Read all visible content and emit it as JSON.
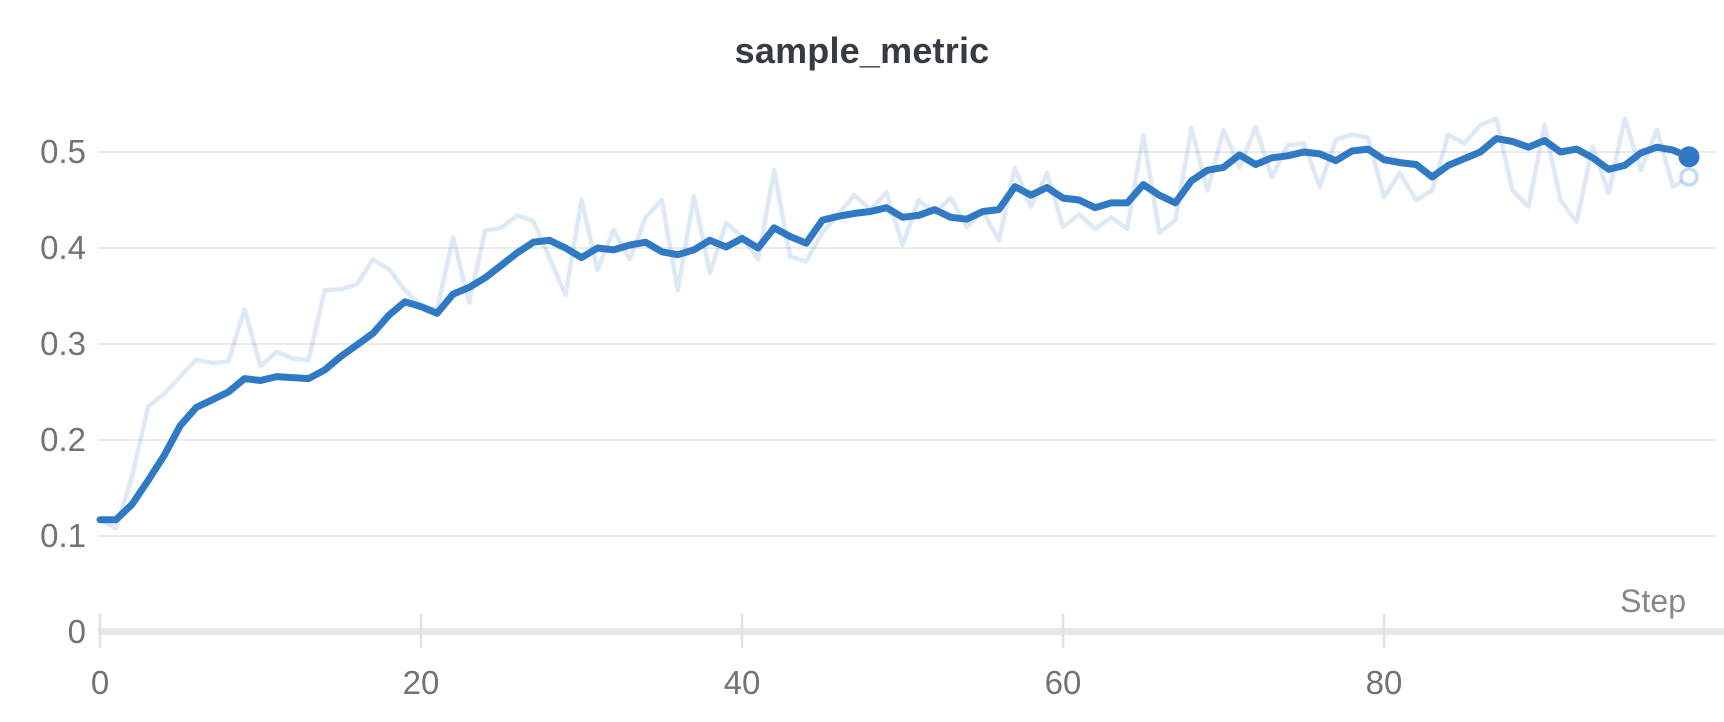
{
  "title": "sample_metric",
  "colors": {
    "title": "#363c44",
    "tick_label": "#6e737b",
    "x_axis_label": "#83878e",
    "gridline": "#ebebed",
    "axis_bar": "#e8e8ea",
    "axis_tick": "#e2e2e5",
    "line_primary": "#3079c4",
    "line_raw": "rgba(48,121,196,0.16)",
    "raw_endpoint_ring": "rgba(48,121,196,0.28)"
  },
  "chart_data": {
    "type": "line",
    "title": "sample_metric",
    "xlabel": "Step",
    "ylabel": "",
    "x_start": 0,
    "x_step": 1,
    "n_points": 100,
    "xlim": [
      0,
      101.2
    ],
    "ylim": [
      0,
      0.55
    ],
    "x_tick_values": [
      0,
      20,
      40,
      60,
      80
    ],
    "x_tick_labels": [
      "0",
      "20",
      "40",
      "60",
      "80"
    ],
    "y_tick_values": [
      0,
      0.1,
      0.2,
      0.3,
      0.4,
      0.5
    ],
    "y_tick_labels": [
      "0",
      "0.1",
      "0.2",
      "0.3",
      "0.4",
      "0.5"
    ],
    "grid": "horizontal",
    "legend": "none",
    "series": [
      {
        "name": "sample_metric (raw)",
        "style": "faint",
        "endpoint": "ring",
        "values": [
          0.117,
          0.108,
          0.162,
          0.235,
          0.248,
          0.266,
          0.284,
          0.28,
          0.282,
          0.336,
          0.277,
          0.292,
          0.285,
          0.283,
          0.356,
          0.357,
          0.362,
          0.388,
          0.378,
          0.356,
          0.34,
          0.336,
          0.411,
          0.343,
          0.418,
          0.421,
          0.434,
          0.428,
          0.39,
          0.351,
          0.45,
          0.377,
          0.419,
          0.388,
          0.432,
          0.45,
          0.356,
          0.454,
          0.374,
          0.426,
          0.412,
          0.388,
          0.481,
          0.391,
          0.386,
          0.416,
          0.435,
          0.455,
          0.44,
          0.458,
          0.403,
          0.45,
          0.437,
          0.452,
          0.422,
          0.438,
          0.408,
          0.483,
          0.443,
          0.478,
          0.422,
          0.435,
          0.42,
          0.432,
          0.42,
          0.518,
          0.416,
          0.429,
          0.525,
          0.46,
          0.523,
          0.484,
          0.526,
          0.474,
          0.507,
          0.509,
          0.464,
          0.513,
          0.518,
          0.515,
          0.453,
          0.478,
          0.45,
          0.46,
          0.518,
          0.509,
          0.528,
          0.535,
          0.46,
          0.443,
          0.528,
          0.45,
          0.427,
          0.506,
          0.457,
          0.535,
          0.481,
          0.523,
          0.464,
          0.474
        ]
      },
      {
        "name": "sample_metric (smoothed)",
        "style": "bold",
        "endpoint": "dot",
        "values": [
          0.117,
          0.117,
          0.133,
          0.158,
          0.184,
          0.215,
          0.234,
          0.242,
          0.25,
          0.264,
          0.262,
          0.266,
          0.265,
          0.264,
          0.273,
          0.287,
          0.299,
          0.311,
          0.33,
          0.344,
          0.339,
          0.332,
          0.352,
          0.359,
          0.369,
          0.382,
          0.395,
          0.406,
          0.408,
          0.4,
          0.39,
          0.4,
          0.398,
          0.403,
          0.406,
          0.396,
          0.393,
          0.398,
          0.408,
          0.401,
          0.41,
          0.4,
          0.421,
          0.412,
          0.405,
          0.429,
          0.433,
          0.436,
          0.438,
          0.442,
          0.432,
          0.434,
          0.44,
          0.432,
          0.43,
          0.438,
          0.44,
          0.464,
          0.455,
          0.463,
          0.452,
          0.45,
          0.442,
          0.447,
          0.447,
          0.466,
          0.455,
          0.447,
          0.47,
          0.481,
          0.484,
          0.497,
          0.487,
          0.494,
          0.496,
          0.5,
          0.498,
          0.491,
          0.501,
          0.503,
          0.492,
          0.489,
          0.487,
          0.474,
          0.486,
          0.493,
          0.5,
          0.514,
          0.511,
          0.505,
          0.512,
          0.5,
          0.503,
          0.494,
          0.482,
          0.486,
          0.499,
          0.505,
          0.502,
          0.495
        ]
      }
    ]
  }
}
